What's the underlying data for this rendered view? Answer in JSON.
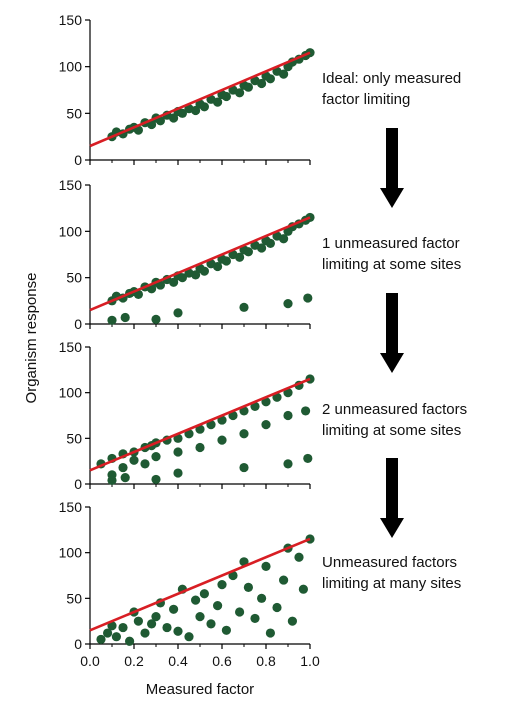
{
  "chart_data": {
    "type": "scatter",
    "ylabel": "Organism response",
    "xlabel": "Measured factor",
    "xlim": [
      0,
      1.0
    ],
    "ylim": [
      0,
      150
    ],
    "x_ticks": [
      "0.0",
      "0.2",
      "0.4",
      "0.6",
      "0.8",
      "1.0"
    ],
    "y_ticks": [
      "0",
      "50",
      "100",
      "150"
    ],
    "point_color": "#1f5a33",
    "line_color": "#d81e24",
    "line": {
      "x": [
        0,
        1.0
      ],
      "y": [
        15,
        115
      ]
    },
    "panels": [
      {
        "annotation": [
          "Ideal: only measured",
          "factor limiting"
        ],
        "points": [
          [
            0.1,
            25
          ],
          [
            0.12,
            30
          ],
          [
            0.15,
            28
          ],
          [
            0.18,
            33
          ],
          [
            0.2,
            35
          ],
          [
            0.22,
            32
          ],
          [
            0.25,
            40
          ],
          [
            0.28,
            38
          ],
          [
            0.3,
            45
          ],
          [
            0.32,
            42
          ],
          [
            0.35,
            48
          ],
          [
            0.38,
            45
          ],
          [
            0.4,
            52
          ],
          [
            0.42,
            50
          ],
          [
            0.45,
            55
          ],
          [
            0.48,
            53
          ],
          [
            0.5,
            60
          ],
          [
            0.52,
            57
          ],
          [
            0.55,
            65
          ],
          [
            0.58,
            62
          ],
          [
            0.6,
            70
          ],
          [
            0.62,
            68
          ],
          [
            0.65,
            75
          ],
          [
            0.68,
            72
          ],
          [
            0.7,
            80
          ],
          [
            0.72,
            78
          ],
          [
            0.75,
            85
          ],
          [
            0.78,
            82
          ],
          [
            0.8,
            90
          ],
          [
            0.82,
            87
          ],
          [
            0.85,
            95
          ],
          [
            0.88,
            92
          ],
          [
            0.9,
            100
          ],
          [
            0.92,
            105
          ],
          [
            0.95,
            108
          ],
          [
            0.98,
            112
          ],
          [
            1.0,
            115
          ]
        ]
      },
      {
        "annotation": [
          "1 unmeasured factor",
          "limiting at some sites"
        ],
        "points": [
          [
            0.1,
            25
          ],
          [
            0.12,
            30
          ],
          [
            0.15,
            28
          ],
          [
            0.18,
            33
          ],
          [
            0.2,
            35
          ],
          [
            0.22,
            32
          ],
          [
            0.25,
            40
          ],
          [
            0.28,
            38
          ],
          [
            0.3,
            45
          ],
          [
            0.32,
            42
          ],
          [
            0.35,
            48
          ],
          [
            0.38,
            45
          ],
          [
            0.4,
            52
          ],
          [
            0.42,
            50
          ],
          [
            0.45,
            55
          ],
          [
            0.48,
            53
          ],
          [
            0.5,
            60
          ],
          [
            0.52,
            57
          ],
          [
            0.55,
            65
          ],
          [
            0.58,
            62
          ],
          [
            0.6,
            70
          ],
          [
            0.62,
            68
          ],
          [
            0.65,
            75
          ],
          [
            0.68,
            72
          ],
          [
            0.7,
            80
          ],
          [
            0.72,
            78
          ],
          [
            0.75,
            85
          ],
          [
            0.78,
            82
          ],
          [
            0.8,
            90
          ],
          [
            0.82,
            87
          ],
          [
            0.85,
            95
          ],
          [
            0.88,
            92
          ],
          [
            0.9,
            100
          ],
          [
            0.92,
            105
          ],
          [
            0.95,
            108
          ],
          [
            0.98,
            112
          ],
          [
            1.0,
            115
          ],
          [
            0.1,
            4
          ],
          [
            0.16,
            7
          ],
          [
            0.3,
            5
          ],
          [
            0.4,
            12
          ],
          [
            0.7,
            18
          ],
          [
            0.9,
            22
          ],
          [
            0.99,
            28
          ]
        ]
      },
      {
        "annotation": [
          "2 unmeasured factors",
          "limiting at some sites"
        ],
        "points": [
          [
            0.05,
            22
          ],
          [
            0.1,
            28
          ],
          [
            0.15,
            33
          ],
          [
            0.2,
            35
          ],
          [
            0.25,
            40
          ],
          [
            0.28,
            42
          ],
          [
            0.3,
            45
          ],
          [
            0.35,
            48
          ],
          [
            0.4,
            50
          ],
          [
            0.45,
            55
          ],
          [
            0.5,
            60
          ],
          [
            0.55,
            65
          ],
          [
            0.6,
            70
          ],
          [
            0.65,
            75
          ],
          [
            0.7,
            80
          ],
          [
            0.75,
            85
          ],
          [
            0.8,
            90
          ],
          [
            0.85,
            95
          ],
          [
            0.9,
            100
          ],
          [
            0.95,
            108
          ],
          [
            1.0,
            115
          ],
          [
            0.1,
            10
          ],
          [
            0.15,
            18
          ],
          [
            0.2,
            26
          ],
          [
            0.25,
            22
          ],
          [
            0.3,
            30
          ],
          [
            0.4,
            35
          ],
          [
            0.5,
            40
          ],
          [
            0.6,
            48
          ],
          [
            0.7,
            55
          ],
          [
            0.8,
            65
          ],
          [
            0.9,
            75
          ],
          [
            0.98,
            80
          ],
          [
            0.1,
            4
          ],
          [
            0.16,
            7
          ],
          [
            0.3,
            5
          ],
          [
            0.4,
            12
          ],
          [
            0.7,
            18
          ],
          [
            0.9,
            22
          ],
          [
            0.99,
            28
          ]
        ]
      },
      {
        "annotation": [
          "Unmeasured factors",
          "limiting at many sites"
        ],
        "points": [
          [
            0.05,
            5
          ],
          [
            0.08,
            12
          ],
          [
            0.1,
            20
          ],
          [
            0.12,
            8
          ],
          [
            0.15,
            18
          ],
          [
            0.18,
            3
          ],
          [
            0.2,
            35
          ],
          [
            0.22,
            25
          ],
          [
            0.25,
            12
          ],
          [
            0.28,
            22
          ],
          [
            0.3,
            30
          ],
          [
            0.32,
            45
          ],
          [
            0.35,
            18
          ],
          [
            0.38,
            38
          ],
          [
            0.4,
            14
          ],
          [
            0.42,
            60
          ],
          [
            0.45,
            8
          ],
          [
            0.48,
            48
          ],
          [
            0.5,
            30
          ],
          [
            0.52,
            55
          ],
          [
            0.55,
            22
          ],
          [
            0.58,
            42
          ],
          [
            0.6,
            65
          ],
          [
            0.62,
            15
          ],
          [
            0.65,
            75
          ],
          [
            0.68,
            35
          ],
          [
            0.7,
            90
          ],
          [
            0.72,
            62
          ],
          [
            0.75,
            28
          ],
          [
            0.78,
            50
          ],
          [
            0.8,
            85
          ],
          [
            0.82,
            12
          ],
          [
            0.85,
            40
          ],
          [
            0.88,
            70
          ],
          [
            0.9,
            105
          ],
          [
            0.92,
            25
          ],
          [
            0.95,
            95
          ],
          [
            0.97,
            60
          ],
          [
            1.0,
            115
          ]
        ]
      }
    ]
  }
}
